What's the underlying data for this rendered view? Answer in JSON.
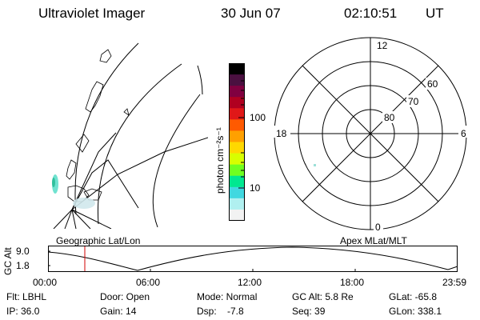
{
  "header": {
    "title": "Ultraviolet Imager",
    "date": "30 Jun 07",
    "time": "02:10:51",
    "tz": "UT"
  },
  "geo_panel": {
    "caption": "Geographic Lat/Lon"
  },
  "colorbar": {
    "unit_label": "photon cm⁻²s⁻¹",
    "ticks": [
      "100",
      "10"
    ],
    "scale": "log",
    "colors": [
      "#000000",
      "#4a1040",
      "#800040",
      "#b00020",
      "#e01818",
      "#ff5a00",
      "#ffa000",
      "#ffd800",
      "#d8ff00",
      "#70ff20",
      "#00e890",
      "#40d8e0",
      "#b0f0f0",
      "#f2f2f2"
    ]
  },
  "polar_panel": {
    "caption": "Apex MLat/MLT",
    "mlt_labels": {
      "top": "12",
      "left": "18",
      "right": "6",
      "bottom": "0"
    },
    "lat_labels": [
      "60",
      "70",
      "80"
    ]
  },
  "altitude_plot": {
    "ylabel": "GC Alt",
    "yticks": [
      "9.0",
      "1.8"
    ],
    "xticks": [
      "00:00",
      "06:00",
      "12:00",
      "18:00",
      "23:59"
    ],
    "marker_color": "#d00000"
  },
  "status": {
    "filter": "Flt: LBHL",
    "ip": "IP: 36.0",
    "door": "Door: Open",
    "gain": "Gain: 14",
    "mode": "Mode: Normal",
    "dsp": "Dsp:    -7.8",
    "gc_alt": "GC Alt: 5.8 Re",
    "seq": "Seq: 39",
    "glat": "GLat: -65.8",
    "glon": "GLon: 338.1"
  }
}
